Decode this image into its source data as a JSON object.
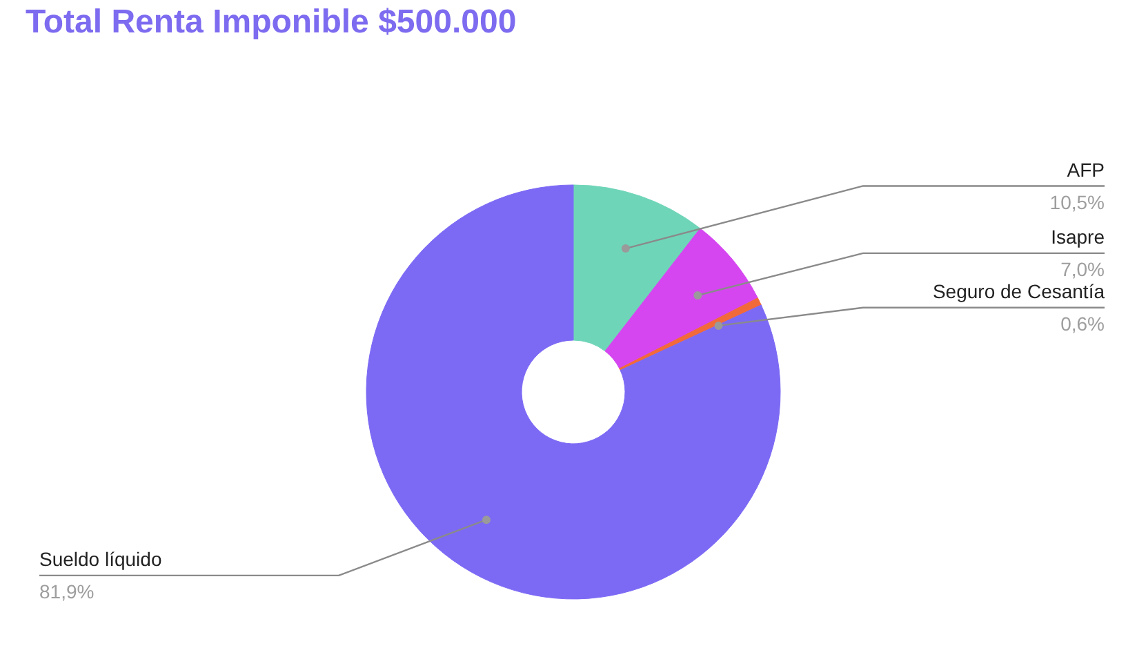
{
  "chart_data": {
    "type": "donut",
    "title": "Total Renta Imponible $500.000",
    "categories": [
      "AFP",
      "Isapre",
      "Seguro de Cesantía",
      "Sueldo líquido"
    ],
    "values": [
      10.5,
      7.0,
      0.6,
      81.9
    ],
    "value_labels": [
      "10,5%",
      "7,0%",
      "0,6%",
      "81,9%"
    ],
    "colors": [
      "#6fd5b8",
      "#d546f0",
      "#f26a3a",
      "#7c6af5"
    ]
  }
}
